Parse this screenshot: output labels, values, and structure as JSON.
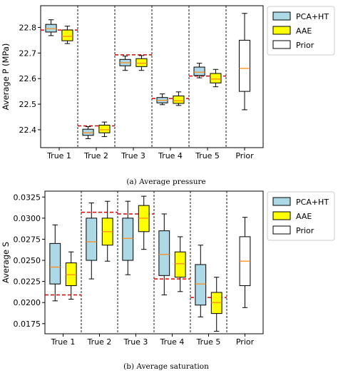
{
  "chart_data": [
    {
      "type": "box",
      "caption": "(a) Average pressure",
      "ylabel": "Average P (MPa)",
      "ylim": [
        22.33,
        22.885
      ],
      "yticks": [
        22.4,
        22.5,
        22.6,
        22.7,
        22.8
      ],
      "categories": [
        "True 1",
        "True 2",
        "True 3",
        "True 4",
        "True 5",
        "Prior"
      ],
      "legend_position": "outside-right",
      "series": [
        {
          "name": "PCA+HT",
          "color": "#add8e6",
          "boxes": [
            {
              "whislo": 22.768,
              "q1": 22.782,
              "med": 22.795,
              "q3": 22.812,
              "whishi": 22.83
            },
            {
              "whislo": 22.365,
              "q1": 22.378,
              "med": 22.388,
              "q3": 22.402,
              "whishi": 22.412
            },
            {
              "whislo": 22.632,
              "q1": 22.65,
              "med": 22.662,
              "q3": 22.675,
              "whishi": 22.688
            },
            {
              "whislo": 22.498,
              "q1": 22.505,
              "med": 22.515,
              "q3": 22.526,
              "whishi": 22.54
            },
            {
              "whislo": 22.603,
              "q1": 22.612,
              "med": 22.625,
              "q3": 22.645,
              "whishi": 22.66
            }
          ]
        },
        {
          "name": "AAE",
          "color": "#ffff00",
          "boxes": [
            {
              "whislo": 22.737,
              "q1": 22.748,
              "med": 22.765,
              "q3": 22.79,
              "whishi": 22.805
            },
            {
              "whislo": 22.373,
              "q1": 22.388,
              "med": 22.4,
              "q3": 22.418,
              "whishi": 22.43
            },
            {
              "whislo": 22.632,
              "q1": 22.647,
              "med": 22.66,
              "q3": 22.678,
              "whishi": 22.69
            },
            {
              "whislo": 22.495,
              "q1": 22.503,
              "med": 22.513,
              "q3": 22.532,
              "whishi": 22.548
            },
            {
              "whislo": 22.568,
              "q1": 22.583,
              "med": 22.598,
              "q3": 22.62,
              "whishi": 22.636
            }
          ]
        },
        {
          "name": "Prior",
          "color": "#ffffff",
          "boxes": [
            {
              "whislo": 22.478,
              "q1": 22.55,
              "med": 22.64,
              "q3": 22.75,
              "whishi": 22.855
            }
          ]
        }
      ],
      "true_values": [
        22.79,
        22.415,
        22.693,
        22.522,
        22.61
      ]
    },
    {
      "type": "box",
      "caption": "(b) Average saturation",
      "ylabel": "Average S",
      "ylim": [
        0.0163,
        0.0332
      ],
      "yticks": [
        "0.0175",
        "0.0200",
        "0.0225",
        "0.0250",
        "0.0275",
        "0.0300",
        "0.0325"
      ],
      "categories": [
        "True 1",
        "True 2",
        "True 3",
        "True 4",
        "True 5",
        "Prior"
      ],
      "legend_position": "outside-right",
      "series": [
        {
          "name": "PCA+HT",
          "color": "#add8e6",
          "boxes": [
            {
              "whislo": 0.0202,
              "q1": 0.0222,
              "med": 0.0242,
              "q3": 0.027,
              "whishi": 0.0292
            },
            {
              "whislo": 0.0228,
              "q1": 0.025,
              "med": 0.0272,
              "q3": 0.03,
              "whishi": 0.0318
            },
            {
              "whislo": 0.0233,
              "q1": 0.025,
              "med": 0.0276,
              "q3": 0.03,
              "whishi": 0.032
            },
            {
              "whislo": 0.0209,
              "q1": 0.0232,
              "med": 0.0257,
              "q3": 0.0285,
              "whishi": 0.0305
            },
            {
              "whislo": 0.0183,
              "q1": 0.0197,
              "med": 0.0222,
              "q3": 0.0245,
              "whishi": 0.0268
            }
          ]
        },
        {
          "name": "AAE",
          "color": "#ffff00",
          "boxes": [
            {
              "whislo": 0.0204,
              "q1": 0.022,
              "med": 0.0233,
              "q3": 0.0247,
              "whishi": 0.026
            },
            {
              "whislo": 0.0249,
              "q1": 0.0268,
              "med": 0.0284,
              "q3": 0.03,
              "whishi": 0.032
            },
            {
              "whislo": 0.0263,
              "q1": 0.0284,
              "med": 0.03,
              "q3": 0.0315,
              "whishi": 0.0326
            },
            {
              "whislo": 0.0213,
              "q1": 0.023,
              "med": 0.0246,
              "q3": 0.026,
              "whishi": 0.0278
            },
            {
              "whislo": 0.0166,
              "q1": 0.0187,
              "med": 0.02,
              "q3": 0.0212,
              "whishi": 0.023
            }
          ]
        },
        {
          "name": "Prior",
          "color": "#ffffff",
          "boxes": [
            {
              "whislo": 0.0194,
              "q1": 0.022,
              "med": 0.0249,
              "q3": 0.0278,
              "whishi": 0.0301
            }
          ]
        }
      ],
      "true_values": [
        0.0209,
        0.0307,
        0.0305,
        0.0228,
        0.0206
      ]
    }
  ],
  "colors": {
    "median": "#ff8c1a",
    "true_line": "#e00000",
    "separator": "#000000"
  }
}
